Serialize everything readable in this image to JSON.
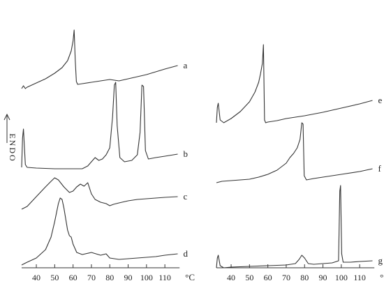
{
  "chart_data": [
    {
      "type": "line",
      "panel": "left",
      "ylabel": "ENDO",
      "xunit": "°C",
      "xticks": [
        40,
        50,
        60,
        70,
        80,
        90,
        100,
        110
      ],
      "xlim": [
        32,
        118
      ],
      "series": [
        {
          "name": "a",
          "x": [
            32,
            33,
            34,
            35,
            40,
            45,
            50,
            54,
            57,
            59,
            60,
            60.6,
            61.2,
            61.8,
            62.5,
            65,
            70,
            75,
            80,
            85,
            90,
            95,
            100,
            105,
            110,
            117
          ],
          "y": [
            0,
            4,
            0,
            2,
            8,
            14,
            22,
            30,
            40,
            54,
            68,
            84,
            40,
            10,
            6,
            7,
            9,
            11,
            13,
            11,
            14,
            17,
            20,
            24,
            28,
            33
          ]
        },
        {
          "name": "b",
          "x": [
            32,
            32.5,
            33,
            34,
            35,
            40,
            50,
            60,
            65,
            68,
            70,
            72,
            74,
            76,
            78,
            80,
            81.5,
            82.5,
            83.2,
            84,
            85.5,
            88,
            92,
            95,
            96.5,
            97.5,
            98.4,
            99.4,
            101,
            105,
            110,
            117
          ],
          "y": [
            0,
            42,
            55,
            4,
            0,
            -1,
            -2,
            -2,
            -2,
            2,
            8,
            14,
            10,
            12,
            18,
            28,
            72,
            118,
            122,
            60,
            14,
            8,
            10,
            18,
            50,
            118,
            116,
            24,
            12,
            14,
            16,
            19
          ]
        },
        {
          "name": "c",
          "x": [
            32,
            35,
            40,
            45,
            48,
            50,
            52,
            55,
            58,
            60,
            62,
            64,
            66,
            68,
            69,
            70,
            72,
            75,
            78,
            80,
            82,
            85,
            90,
            95,
            100,
            105,
            110,
            117
          ],
          "y": [
            0,
            4,
            18,
            32,
            40,
            45,
            42,
            32,
            24,
            26,
            32,
            36,
            33,
            38,
            30,
            22,
            14,
            10,
            8,
            5,
            7,
            9,
            12,
            14,
            15,
            16,
            17,
            18
          ]
        },
        {
          "name": "d",
          "x": [
            32,
            35,
            40,
            45,
            48,
            50,
            52,
            53,
            54,
            55,
            57,
            58,
            59,
            60,
            62,
            65,
            70,
            75,
            78,
            80,
            85,
            90,
            95,
            100,
            105,
            110,
            117
          ],
          "y": [
            0,
            4,
            10,
            22,
            40,
            62,
            88,
            96,
            94,
            82,
            50,
            42,
            40,
            30,
            18,
            15,
            18,
            14,
            16,
            10,
            8,
            9,
            10,
            11,
            12,
            14,
            16
          ]
        }
      ]
    },
    {
      "type": "line",
      "panel": "right",
      "xunit": "°C",
      "xticks": [
        40,
        50,
        60,
        70,
        80,
        90,
        100,
        110
      ],
      "xlim": [
        32,
        118
      ],
      "series": [
        {
          "name": "e",
          "x": [
            32,
            32.5,
            33,
            34,
            36,
            40,
            45,
            50,
            53,
            55,
            56,
            57,
            57.6,
            58.2,
            58.8,
            60,
            65,
            70,
            80,
            90,
            100,
            110,
            117
          ],
          "y": [
            0,
            22,
            28,
            4,
            0,
            6,
            16,
            30,
            44,
            58,
            70,
            85,
            112,
            4,
            0,
            1,
            3,
            6,
            10,
            15,
            21,
            27,
            32
          ]
        },
        {
          "name": "f",
          "x": [
            32,
            35,
            40,
            50,
            55,
            60,
            65,
            70,
            72,
            74,
            76,
            77.5,
            78.5,
            79.2,
            79.8,
            81,
            85,
            90,
            100,
            110,
            117
          ],
          "y": [
            0,
            2,
            3,
            5,
            8,
            12,
            18,
            28,
            36,
            42,
            50,
            62,
            86,
            84,
            10,
            4,
            6,
            8,
            12,
            16,
            20
          ]
        },
        {
          "name": "g",
          "x": [
            32,
            32.5,
            33,
            34,
            36,
            40,
            50,
            60,
            70,
            75,
            77,
            78.5,
            80,
            82,
            85,
            90,
            95,
            98.5,
            99.2,
            99.6,
            100.2,
            101,
            105,
            110,
            117
          ],
          "y": [
            0,
            14,
            18,
            3,
            0,
            1,
            2,
            3,
            4,
            6,
            12,
            18,
            14,
            6,
            5,
            6,
            7,
            10,
            110,
            118,
            20,
            8,
            8,
            9,
            10
          ]
        }
      ]
    }
  ]
}
